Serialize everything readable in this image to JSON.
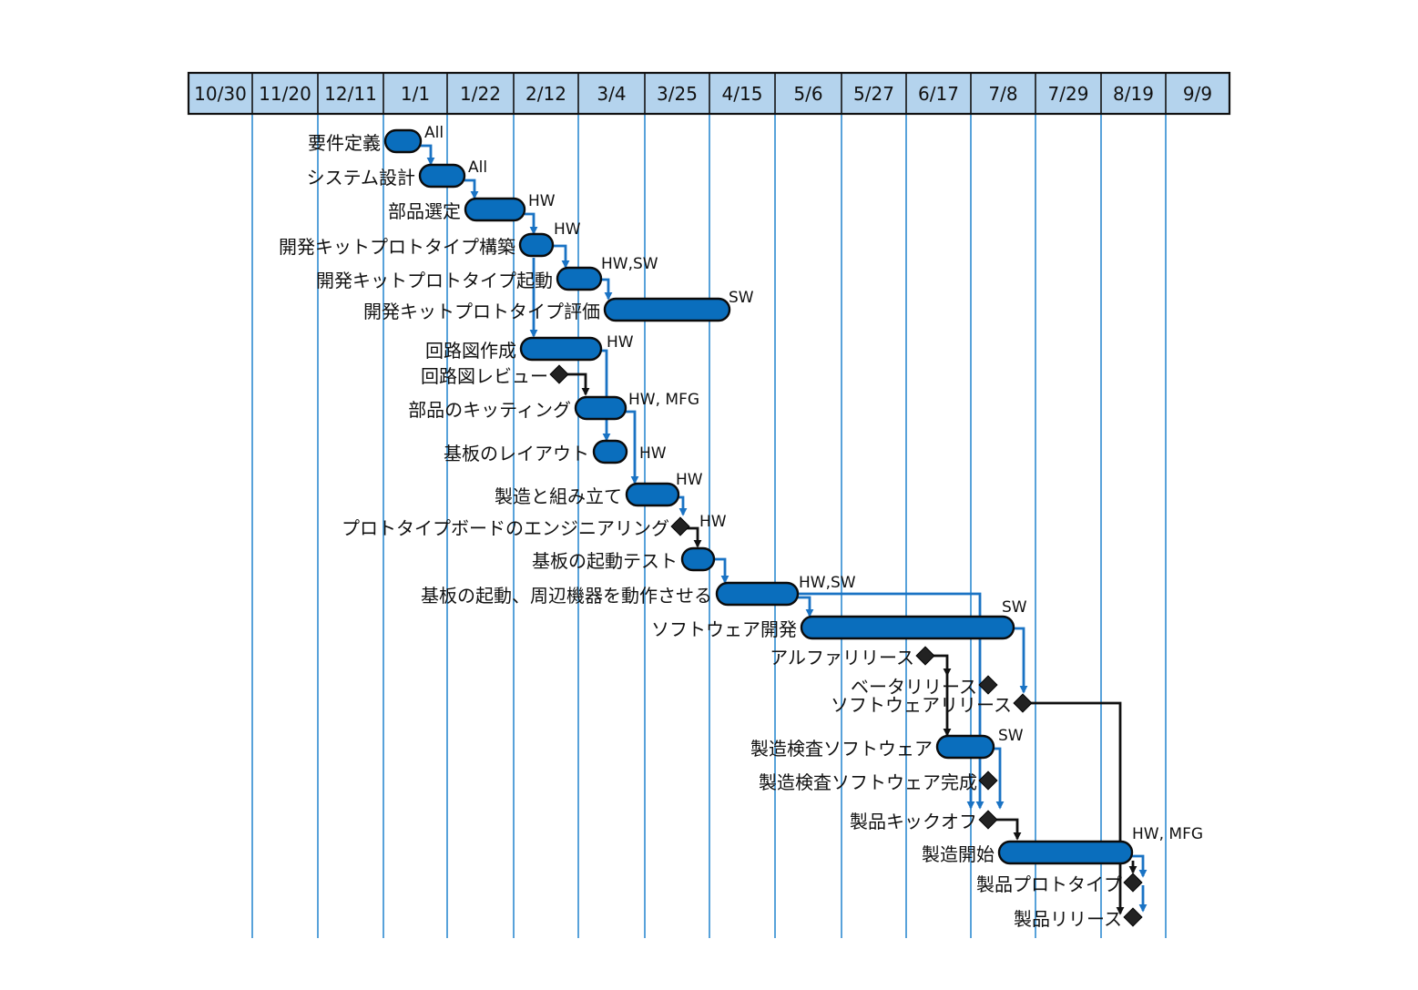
{
  "timeline": {
    "columns": [
      "10/30",
      "11/20",
      "12/11",
      "1/1",
      "1/22",
      "2/12",
      "3/4",
      "3/25",
      "4/15",
      "5/6",
      "5/27",
      "6/17",
      "7/8",
      "7/29",
      "8/19",
      "9/9"
    ]
  },
  "colors": {
    "header_fill": "#b4d3ed",
    "bar_fill": "#0a6ebd",
    "gridline": "#2e8bd0",
    "arrow_blue": "#1a73c4",
    "arrow_black": "#111111",
    "milestone": "#222222"
  },
  "tasks": [
    {
      "name": "要件定義",
      "type": "bar",
      "role": "All"
    },
    {
      "name": "システム設計",
      "type": "bar",
      "role": "All"
    },
    {
      "name": "部品選定",
      "type": "bar",
      "role": "HW"
    },
    {
      "name": "開発キットプロトタイプ構築",
      "type": "bar",
      "role": "HW"
    },
    {
      "name": "開発キットプロトタイプ起動",
      "type": "bar",
      "role": "HW,SW"
    },
    {
      "name": "開発キットプロトタイプ評価",
      "type": "bar",
      "role": "SW"
    },
    {
      "name": "回路図作成",
      "type": "bar",
      "role": "HW"
    },
    {
      "name": "回路図レビュー",
      "type": "milestone",
      "role": ""
    },
    {
      "name": "部品のキッティング",
      "type": "bar",
      "role": "HW, MFG"
    },
    {
      "name": "基板のレイアウト",
      "type": "bar",
      "role": "HW"
    },
    {
      "name": "製造と組み立て",
      "type": "bar",
      "role": "HW"
    },
    {
      "name": "プロトタイプボードのエンジニアリング",
      "type": "milestone",
      "role": "HW"
    },
    {
      "name": "基板の起動テスト",
      "type": "bar",
      "role": ""
    },
    {
      "name": "基板の起動、周辺機器を動作させる",
      "type": "bar",
      "role": "HW,SW"
    },
    {
      "name": "ソフトウェア開発",
      "type": "bar",
      "role": "SW"
    },
    {
      "name": "アルファリリース",
      "type": "milestone",
      "role": ""
    },
    {
      "name": "ベータリリース",
      "type": "milestone",
      "role": ""
    },
    {
      "name": "ソフトウェアリリース",
      "type": "milestone",
      "role": ""
    },
    {
      "name": "製造検査ソフトウェア",
      "type": "bar",
      "role": "SW"
    },
    {
      "name": "製造検査ソフトウェア完成",
      "type": "milestone",
      "role": ""
    },
    {
      "name": "製品キックオフ",
      "type": "milestone",
      "role": ""
    },
    {
      "name": "製造開始",
      "type": "bar",
      "role": "HW, MFG"
    },
    {
      "name": "製品プロトタイプ",
      "type": "milestone",
      "role": ""
    },
    {
      "name": "製品リリース",
      "type": "milestone",
      "role": ""
    }
  ]
}
